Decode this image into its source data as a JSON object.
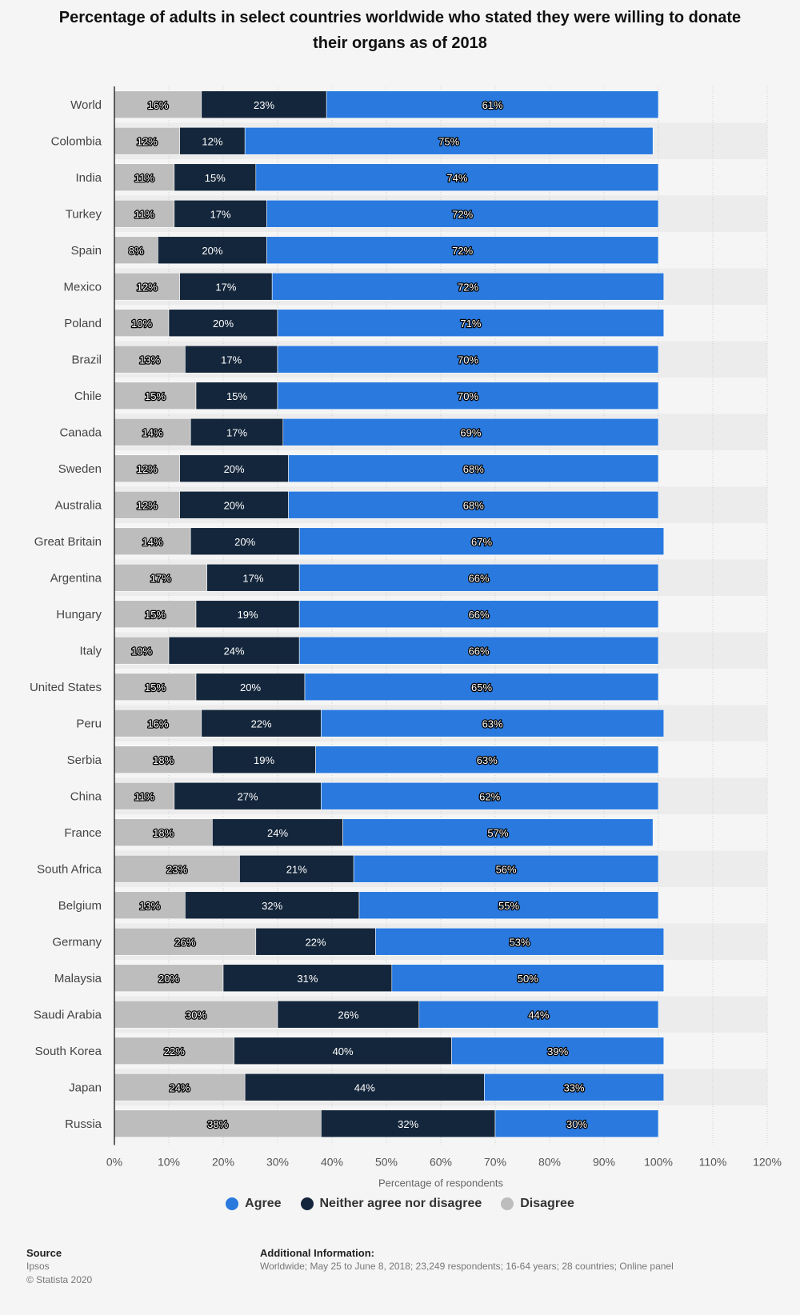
{
  "title": "Percentage of adults in select countries worldwide who stated they were willing to donate their organs as of 2018",
  "colors": {
    "agree": "#2979de",
    "neither": "#14263b",
    "disagree": "#bdbdbd",
    "stripe": "#ececec",
    "background": "#f5f5f5"
  },
  "legend": {
    "agree": "Agree",
    "neither": "Neither agree nor disagree",
    "disagree": "Disagree"
  },
  "footer": {
    "source_label": "Source",
    "source_name": "Ipsos",
    "copyright": "© Statista 2020",
    "additional_label": "Additional Information:",
    "additional_text": "Worldwide; May 25 to June 8, 2018; 23,249 respondents; 16-64 years; 28 countries; Online panel"
  },
  "chart_data": {
    "type": "bar",
    "orientation": "horizontal",
    "stacked": true,
    "title": "Percentage of adults in select countries worldwide who stated they were willing to donate their organs as of 2018",
    "xlabel": "Percentage of respondents",
    "ylabel": "",
    "xlim": [
      0,
      120
    ],
    "x_ticks": [
      "0%",
      "10%",
      "20%",
      "30%",
      "40%",
      "50%",
      "60%",
      "70%",
      "80%",
      "90%",
      "100%",
      "110%",
      "120%"
    ],
    "grid": true,
    "legend_position": "bottom",
    "categories": [
      "World",
      "Colombia",
      "India",
      "Turkey",
      "Spain",
      "Mexico",
      "Poland",
      "Brazil",
      "Chile",
      "Canada",
      "Sweden",
      "Australia",
      "Great Britain",
      "Argentina",
      "Hungary",
      "Italy",
      "United States",
      "Peru",
      "Serbia",
      "China",
      "France",
      "South Africa",
      "Belgium",
      "Germany",
      "Malaysia",
      "Saudi Arabia",
      "South Korea",
      "Japan",
      "Russia"
    ],
    "series": [
      {
        "name": "Disagree",
        "key": "disagree",
        "values": [
          16,
          12,
          11,
          11,
          8,
          12,
          10,
          13,
          15,
          14,
          12,
          12,
          14,
          17,
          15,
          10,
          15,
          16,
          18,
          11,
          18,
          23,
          13,
          26,
          20,
          30,
          22,
          24,
          38
        ]
      },
      {
        "name": "Neither agree nor disagree",
        "key": "neither",
        "values": [
          23,
          12,
          15,
          17,
          20,
          17,
          20,
          17,
          15,
          17,
          20,
          20,
          20,
          17,
          19,
          24,
          20,
          22,
          19,
          27,
          24,
          21,
          32,
          22,
          31,
          26,
          40,
          44,
          32
        ]
      },
      {
        "name": "Agree",
        "key": "agree",
        "values": [
          61,
          75,
          74,
          72,
          72,
          72,
          71,
          70,
          70,
          69,
          68,
          68,
          67,
          66,
          66,
          66,
          65,
          63,
          63,
          62,
          57,
          56,
          55,
          53,
          50,
          44,
          39,
          33,
          30
        ]
      }
    ]
  }
}
